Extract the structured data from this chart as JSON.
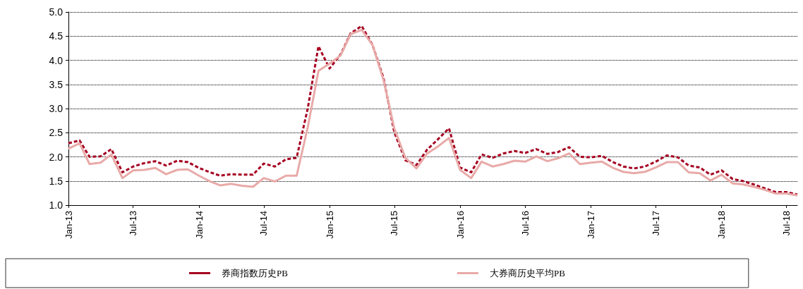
{
  "chart_data": {
    "type": "line",
    "x": [
      "2013-01",
      "2013-02",
      "2013-03",
      "2013-04",
      "2013-05",
      "2013-06",
      "2013-07",
      "2013-08",
      "2013-09",
      "2013-10",
      "2013-11",
      "2013-12",
      "2014-01",
      "2014-02",
      "2014-03",
      "2014-04",
      "2014-05",
      "2014-06",
      "2014-07",
      "2014-08",
      "2014-09",
      "2014-10",
      "2014-11",
      "2014-12",
      "2015-01",
      "2015-02",
      "2015-03",
      "2015-04",
      "2015-05",
      "2015-06",
      "2015-07",
      "2015-08",
      "2015-09",
      "2015-10",
      "2015-11",
      "2015-12",
      "2016-01",
      "2016-02",
      "2016-03",
      "2016-04",
      "2016-05",
      "2016-06",
      "2016-07",
      "2016-08",
      "2016-09",
      "2016-10",
      "2016-11",
      "2016-12",
      "2017-01",
      "2017-02",
      "2017-03",
      "2017-04",
      "2017-05",
      "2017-06",
      "2017-07",
      "2017-08",
      "2017-09",
      "2017-10",
      "2017-11",
      "2017-12",
      "2018-01",
      "2018-02",
      "2018-03",
      "2018-04",
      "2018-05",
      "2018-06",
      "2018-07",
      "2018-08"
    ],
    "series": [
      {
        "name": "券商指数历史PB",
        "color": "#a50021",
        "line_style": "dashed",
        "values": [
          2.28,
          2.34,
          2.0,
          2.01,
          2.16,
          1.68,
          1.8,
          1.87,
          1.91,
          1.82,
          1.92,
          1.89,
          1.77,
          1.68,
          1.61,
          1.64,
          1.63,
          1.63,
          1.86,
          1.8,
          1.95,
          1.98,
          3.0,
          4.29,
          3.83,
          4.12,
          4.56,
          4.71,
          4.32,
          3.63,
          2.51,
          1.93,
          1.83,
          2.15,
          2.37,
          2.59,
          1.78,
          1.68,
          2.05,
          1.98,
          2.07,
          2.12,
          2.08,
          2.16,
          2.06,
          2.1,
          2.2,
          2.0,
          1.99,
          2.02,
          1.9,
          1.8,
          1.76,
          1.8,
          1.9,
          2.03,
          1.99,
          1.82,
          1.78,
          1.63,
          1.72,
          1.54,
          1.5,
          1.43,
          1.35,
          1.27,
          1.27,
          1.22
        ]
      },
      {
        "name": "大券商历史平均PB",
        "color": "#e8aaa8",
        "line_style": "solid",
        "values": [
          2.17,
          2.28,
          1.85,
          1.88,
          2.05,
          1.56,
          1.72,
          1.73,
          1.77,
          1.64,
          1.73,
          1.74,
          1.61,
          1.49,
          1.41,
          1.44,
          1.4,
          1.38,
          1.56,
          1.49,
          1.61,
          1.61,
          2.61,
          3.78,
          3.93,
          4.1,
          4.54,
          4.63,
          4.32,
          3.59,
          2.59,
          1.98,
          1.76,
          2.07,
          2.22,
          2.39,
          1.73,
          1.56,
          1.9,
          1.8,
          1.85,
          1.92,
          1.9,
          2.01,
          1.91,
          1.97,
          2.07,
          1.85,
          1.88,
          1.9,
          1.78,
          1.69,
          1.66,
          1.69,
          1.78,
          1.89,
          1.89,
          1.68,
          1.66,
          1.51,
          1.63,
          1.45,
          1.43,
          1.38,
          1.32,
          1.24,
          1.24,
          1.2
        ]
      }
    ],
    "xlim": [
      "2013-01",
      "2018-08"
    ],
    "xticks": [
      {
        "value": "2013-01",
        "label": "Jan-13"
      },
      {
        "value": "2013-07",
        "label": "Jul-13"
      },
      {
        "value": "2014-01",
        "label": "Jan-14"
      },
      {
        "value": "2014-07",
        "label": "Jul-14"
      },
      {
        "value": "2015-01",
        "label": "Jan-15"
      },
      {
        "value": "2015-07",
        "label": "Jul-15"
      },
      {
        "value": "2016-01",
        "label": "Jan-16"
      },
      {
        "value": "2016-07",
        "label": "Jul-16"
      },
      {
        "value": "2017-01",
        "label": "Jan-17"
      },
      {
        "value": "2017-07",
        "label": "Jul-17"
      },
      {
        "value": "2018-01",
        "label": "Jan-18"
      },
      {
        "value": "2018-07",
        "label": "Jul-18"
      }
    ],
    "ylim": [
      1.0,
      5.0
    ],
    "yticks": [
      {
        "value": 1.0,
        "label": "1.0"
      },
      {
        "value": 1.5,
        "label": "1.5"
      },
      {
        "value": 2.0,
        "label": "2.0"
      },
      {
        "value": 2.5,
        "label": "2.5"
      },
      {
        "value": 3.0,
        "label": "3.0"
      },
      {
        "value": 3.5,
        "label": "3.5"
      },
      {
        "value": 4.0,
        "label": "4.0"
      },
      {
        "value": 4.5,
        "label": "4.5"
      },
      {
        "value": 5.0,
        "label": "5.0"
      }
    ],
    "grid": "y",
    "legend": "bottom",
    "marker": "none"
  }
}
